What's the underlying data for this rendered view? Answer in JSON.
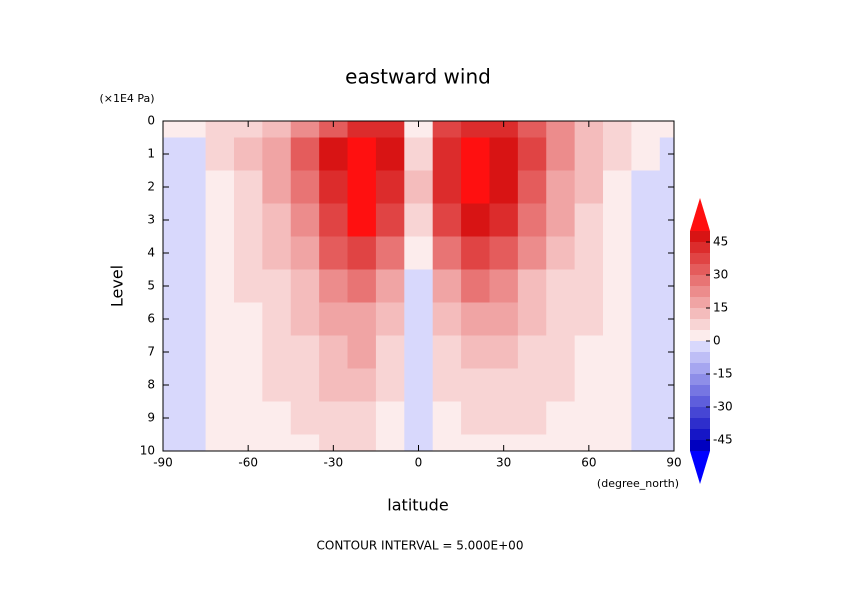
{
  "chart_data": {
    "type": "contour",
    "title": "eastward wind",
    "y_unit": "(×1E4 Pa)",
    "x_unit": "(degree_north)",
    "xlabel": "latitude",
    "ylabel": "Level",
    "footer": "CONTOUR INTERVAL = 5.000E+00",
    "x": [
      -90,
      -80,
      -70,
      -60,
      -50,
      -40,
      -30,
      -20,
      -10,
      0,
      10,
      20,
      30,
      40,
      50,
      60,
      70,
      80,
      90
    ],
    "y": [
      0,
      1,
      2,
      3,
      4,
      5,
      6,
      7,
      8,
      9,
      10
    ],
    "z": [
      [
        0,
        2,
        5,
        8,
        12,
        20,
        30,
        40,
        40,
        0,
        35,
        40,
        40,
        30,
        20,
        12,
        8,
        4,
        0
      ],
      [
        -2,
        -1,
        5,
        10,
        18,
        30,
        45,
        52,
        45,
        8,
        40,
        50,
        48,
        35,
        20,
        12,
        6,
        0,
        -2
      ],
      [
        -3,
        -2,
        3,
        9,
        17,
        28,
        42,
        55,
        42,
        10,
        40,
        53,
        45,
        32,
        18,
        10,
        4,
        -1,
        -3
      ],
      [
        -3,
        -2,
        2,
        7,
        14,
        24,
        38,
        50,
        38,
        8,
        35,
        48,
        40,
        27,
        15,
        8,
        3,
        -1,
        -3
      ],
      [
        -3,
        -2,
        1,
        6,
        11,
        18,
        30,
        38,
        28,
        3,
        25,
        38,
        30,
        20,
        12,
        6,
        2,
        -1,
        -3
      ],
      [
        -3,
        -2,
        1,
        5,
        9,
        14,
        22,
        26,
        18,
        -2,
        15,
        25,
        20,
        14,
        9,
        5,
        2,
        -1,
        -3
      ],
      [
        -3,
        -1,
        1,
        4,
        7,
        11,
        17,
        19,
        13,
        -3,
        10,
        18,
        15,
        11,
        8,
        5,
        2,
        -1,
        -3
      ],
      [
        -3,
        -1,
        1,
        3,
        6,
        9,
        14,
        15,
        9,
        -3,
        7,
        13,
        12,
        9,
        6,
        4,
        2,
        -1,
        -3
      ],
      [
        -3,
        -1,
        1,
        3,
        5,
        7,
        11,
        11,
        6,
        -4,
        5,
        9,
        9,
        7,
        5,
        3,
        2,
        -1,
        -3
      ],
      [
        -3,
        -1,
        1,
        2,
        4,
        6,
        8,
        8,
        3,
        -4,
        3,
        6,
        6,
        5,
        4,
        3,
        1,
        -1,
        -3
      ],
      [
        -3,
        -1,
        0,
        2,
        3,
        4,
        5,
        5,
        1,
        -4,
        1,
        4,
        4,
        4,
        3,
        2,
        1,
        -1,
        -3
      ]
    ],
    "xlim": [
      -90,
      90
    ],
    "ylim": [
      0,
      10
    ],
    "y_reversed": true,
    "xticks": [
      -90,
      -60,
      -30,
      0,
      30,
      60,
      90
    ],
    "yticks": [
      0,
      1,
      2,
      3,
      4,
      5,
      6,
      7,
      8,
      9,
      10
    ],
    "levels": [
      -50,
      -45,
      -40,
      -35,
      -30,
      -25,
      -20,
      -15,
      -10,
      -5,
      0,
      5,
      10,
      15,
      20,
      25,
      30,
      35,
      40,
      45,
      50
    ],
    "colors": [
      "#0000c0",
      "#1616c6",
      "#2e2ecc",
      "#4646d4",
      "#5e5edc",
      "#7676e2",
      "#8e8ee8",
      "#a6a6f0",
      "#bebef6",
      "#d8d8fc",
      "#fcecec",
      "#f8d4d4",
      "#f4bcbc",
      "#f0a4a4",
      "#ec8c8c",
      "#e87474",
      "#e45c5c",
      "#e04444",
      "#dc2c2c",
      "#d81414"
    ],
    "under_color": "#0000ff",
    "over_color": "#ff1010",
    "colorbar_ticks": [
      45,
      30,
      15,
      0,
      -15,
      -30,
      -45
    ]
  }
}
